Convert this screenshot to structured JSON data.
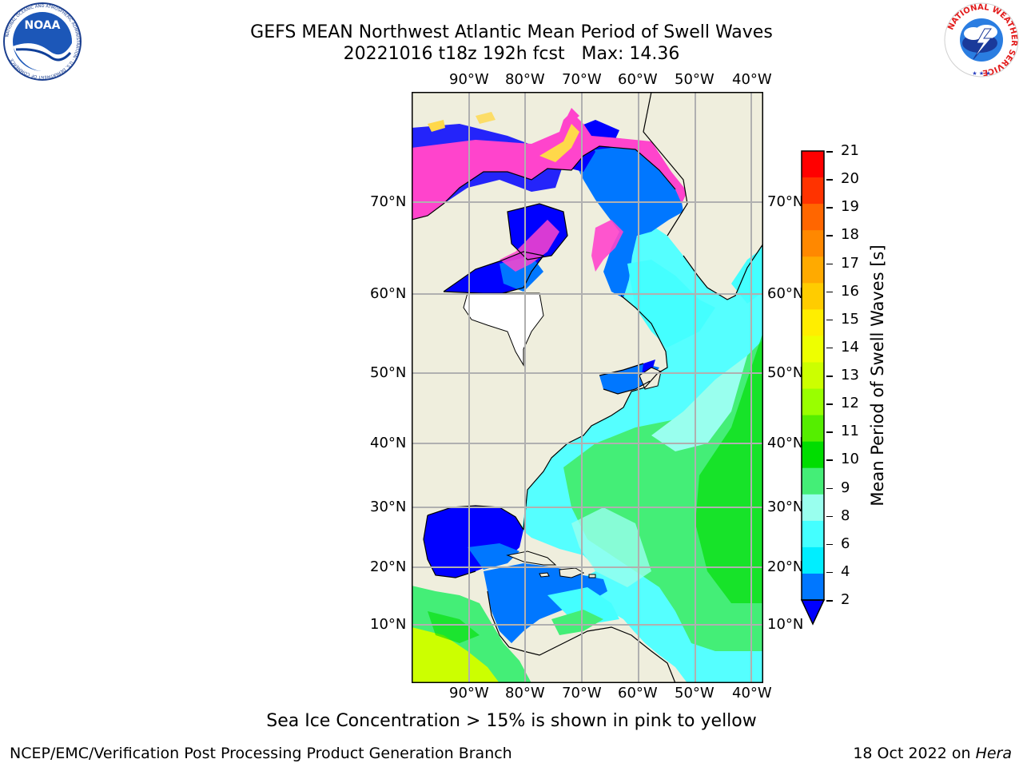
{
  "header": {
    "title_line1": "GEFS MEAN Northwest Atlantic Mean Period of Swell Waves",
    "title_line2": "20221016 t18z 192h fcst   Max: 14.36"
  },
  "logos": {
    "noaa_text": "NOAA",
    "noaa_ring_text": "NATIONAL OCEANIC AND ATMOSPHERIC ADMINISTRATION · U.S. DEPARTMENT OF COMMERCE",
    "nws_ring_text": "NATIONAL WEATHER SERVICE"
  },
  "map": {
    "lon_labels": [
      "90°W",
      "80°W",
      "70°W",
      "60°W",
      "50°W",
      "40°W"
    ],
    "lat_labels": [
      "70°N",
      "60°N",
      "50°N",
      "40°N",
      "30°N",
      "20°N",
      "10°N"
    ],
    "colors": {
      "land": "#efeedd",
      "ice_pink": "#ff44cc",
      "ice_yellow": "#ffd84a",
      "grid": "#b0b0b0"
    }
  },
  "colorbar": {
    "label": "Mean Period of Swell Waves [s]",
    "ticks": [
      "21",
      "20",
      "19",
      "18",
      "17",
      "16",
      "15",
      "14",
      "13",
      "12",
      "11",
      "10",
      "9",
      "8",
      "6",
      "4",
      "2"
    ],
    "colors": [
      "#ff0000",
      "#ff3300",
      "#ff6600",
      "#ff8800",
      "#ffaa00",
      "#ffcc00",
      "#ffee00",
      "#eeff00",
      "#ccff00",
      "#99ff00",
      "#55ee00",
      "#00dd00",
      "#44ee77",
      "#99ffee",
      "#44ffff",
      "#00eeff",
      "#0077ff"
    ],
    "extend_color": "#0000ff"
  },
  "footer": {
    "note": "Sea Ice Concentration > 15% is shown in pink to yellow",
    "left": "NCEP/EMC/Verification Post Processing Product Generation Branch",
    "right_date": "18 Oct 2022 on ",
    "right_machine": "Hera"
  }
}
